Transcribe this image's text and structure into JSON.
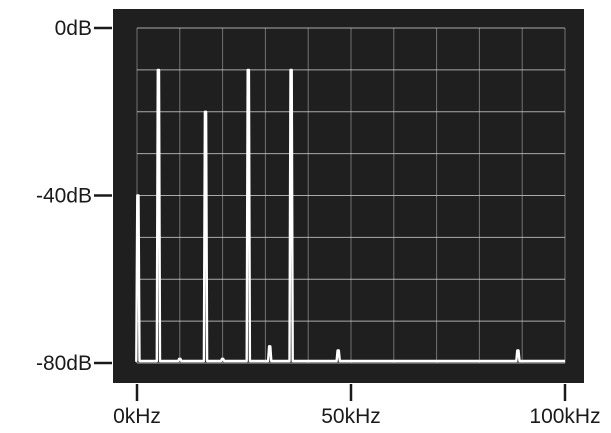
{
  "chart_data": {
    "type": "line",
    "title": "",
    "xlabel": "",
    "ylabel": "",
    "x_unit": "kHz",
    "y_unit": "dB",
    "xlim": [
      0,
      100
    ],
    "ylim": [
      -80,
      0
    ],
    "grid": true,
    "x_ticks": [
      {
        "value": 0,
        "label": "0kHz"
      },
      {
        "value": 50,
        "label": "50kHz"
      },
      {
        "value": 100,
        "label": "100kHz"
      }
    ],
    "y_ticks": [
      {
        "value": 0,
        "label": "0dB"
      },
      {
        "value": -40,
        "label": "-40dB"
      },
      {
        "value": -80,
        "label": "-80dB"
      }
    ],
    "series": [
      {
        "peaks": [
          {
            "x": 0.2,
            "y": -40
          },
          {
            "x": 5,
            "y": -10
          },
          {
            "x": 10,
            "y": -79
          },
          {
            "x": 16,
            "y": -20
          },
          {
            "x": 20,
            "y": -79
          },
          {
            "x": 26,
            "y": -10
          },
          {
            "x": 31,
            "y": -76
          },
          {
            "x": 36,
            "y": -10
          },
          {
            "x": 47,
            "y": -77
          },
          {
            "x": 89,
            "y": -77
          }
        ]
      }
    ],
    "colors": {
      "screen": "#1f1f1f",
      "grid": "#d8d8d8",
      "trace": "#ffffff",
      "axis": "#1a1a1a"
    }
  }
}
